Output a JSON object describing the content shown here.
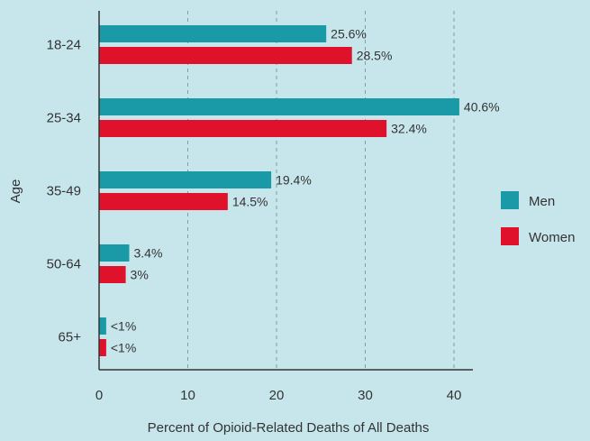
{
  "chart_data": {
    "type": "bar",
    "orientation": "horizontal",
    "categories": [
      "18-24",
      "25-34",
      "35-49",
      "50-64",
      "65+"
    ],
    "series": [
      {
        "name": "Men",
        "color": "#1a9aa6",
        "values": [
          25.6,
          40.6,
          19.4,
          3.4,
          0.8
        ],
        "labels": [
          "25.6%",
          "40.6%",
          "19.4%",
          "3.4%",
          "<1%"
        ]
      },
      {
        "name": "Women",
        "color": "#e0112b",
        "values": [
          28.5,
          32.4,
          14.5,
          3,
          0.8
        ],
        "labels": [
          "28.5%",
          "32.4%",
          "14.5%",
          "3%",
          "<1%"
        ]
      }
    ],
    "xlabel": "Percent of Opioid-Related Deaths of All Deaths",
    "ylabel": "Age",
    "xlim": [
      0,
      42
    ],
    "xticks": [
      0,
      10,
      20,
      30,
      40
    ],
    "grid": "vertical-dashed",
    "legend_position": "right"
  }
}
